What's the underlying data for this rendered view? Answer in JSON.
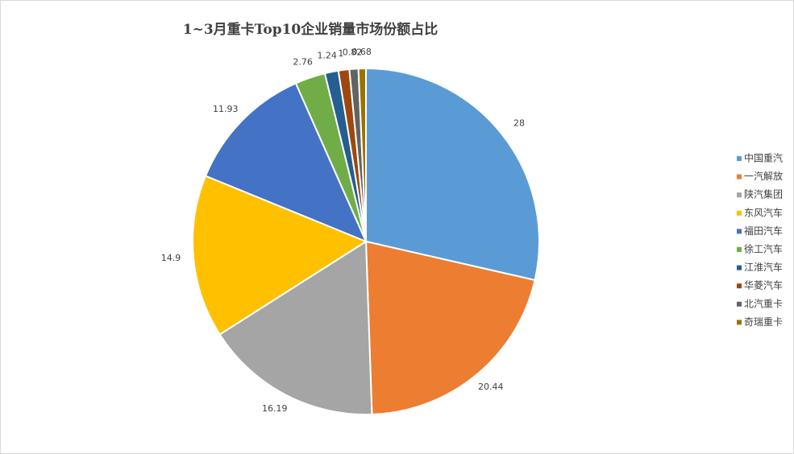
{
  "chart_data": {
    "type": "pie",
    "title": "1~3月重卡Top10企业销量市场份额占比",
    "categories": [
      "中国重汽",
      "一汽解放",
      "陕汽集团",
      "东风汽车",
      "福田汽车",
      "徐工汽车",
      "江淮汽车",
      "华菱汽车",
      "北汽重卡",
      "奇瑞重卡"
    ],
    "values": [
      28,
      20.44,
      16.19,
      14.9,
      11.93,
      2.76,
      1.24,
      1,
      0.82,
      0.68
    ],
    "colors": [
      "#5b9bd5",
      "#ed7d31",
      "#a5a5a5",
      "#ffc000",
      "#4472c4",
      "#70ad47",
      "#255e91",
      "#9e480e",
      "#636363",
      "#997300"
    ],
    "legend": "right"
  }
}
